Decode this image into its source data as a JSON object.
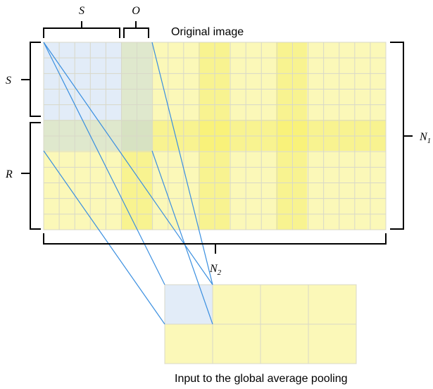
{
  "labels": {
    "top_title": "Original image",
    "bottom_caption": "Input to the global average pooling",
    "s_top": "S",
    "o_top": "O",
    "s_left": "S",
    "r_left": "R",
    "n1_base": "N",
    "n1_sub": "1",
    "n2_base": "N",
    "n2_sub": "2"
  },
  "colors": {
    "yellow": "#fbf8b8",
    "yellow_band": "#f8f390",
    "yellow_cross": "#f9f27a",
    "blue": "#e2ecf8",
    "green": "#dfe8cd",
    "grid": "#d8d8c8",
    "line": "#3a8fe0"
  }
}
